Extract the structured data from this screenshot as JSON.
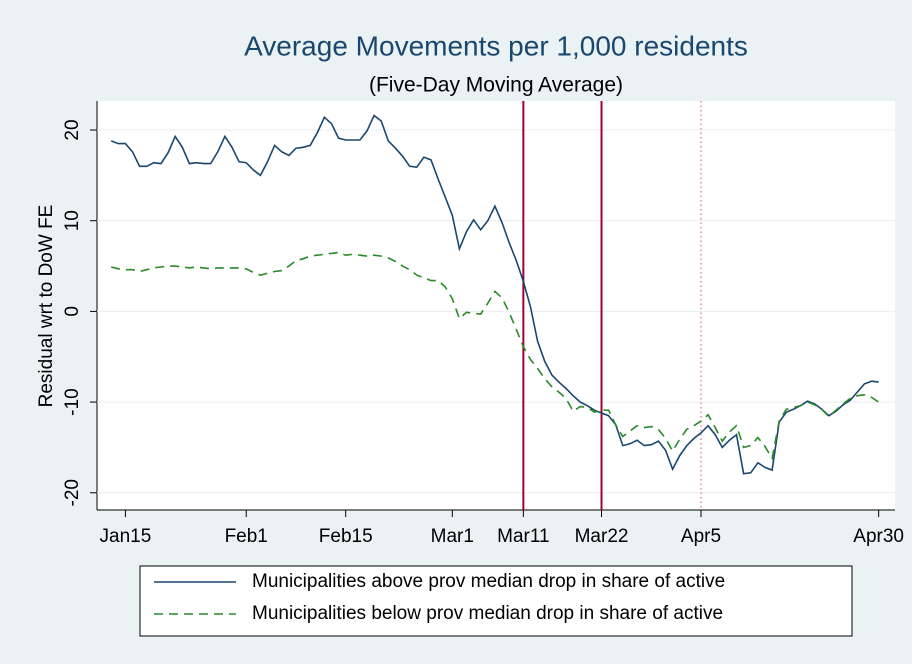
{
  "chart_data": {
    "type": "line",
    "title": "Average Movements per 1,000 residents",
    "subtitle": "(Five-Day Moving Average)",
    "y_label": "Residual wrt to DoW FE",
    "x": [
      13,
      14,
      15,
      16,
      17,
      18,
      19,
      20,
      21,
      22,
      23,
      24,
      25,
      26,
      27,
      28,
      29,
      30,
      31,
      32,
      33,
      34,
      35,
      36,
      37,
      38,
      39,
      40,
      41,
      42,
      43,
      44,
      45,
      46,
      47,
      48,
      49,
      50,
      51,
      52,
      53,
      54,
      55,
      56,
      57,
      58,
      59,
      60,
      61,
      62,
      63,
      64,
      65,
      66,
      67,
      68,
      69,
      70,
      71,
      72,
      73,
      74,
      75,
      76,
      77,
      78,
      79,
      80,
      81,
      82,
      83,
      84,
      85,
      86,
      87,
      88,
      89,
      90,
      91,
      92,
      93,
      94,
      95,
      96,
      97,
      98,
      99,
      100,
      101,
      102,
      103,
      104,
      105,
      106,
      107,
      108,
      109,
      110,
      111,
      112,
      113,
      114,
      115,
      116,
      117,
      118,
      119,
      120,
      121
    ],
    "series": [
      {
        "name": "Municipalities above prov median drop in share of active",
        "color": "#1a476f",
        "dash": "solid",
        "values": [
          18.8,
          18.5,
          18.5,
          17.6,
          16.0,
          16.0,
          16.4,
          16.3,
          17.5,
          19.3,
          18.1,
          16.3,
          16.4,
          16.3,
          16.3,
          17.6,
          19.3,
          18.1,
          16.5,
          16.4,
          15.6,
          15.0,
          16.5,
          18.3,
          17.6,
          17.2,
          18.0,
          18.1,
          18.3,
          19.7,
          21.4,
          20.7,
          19.1,
          18.9,
          18.9,
          18.9,
          19.9,
          21.6,
          21.0,
          18.8,
          18.0,
          17.1,
          16.0,
          15.9,
          17.0,
          16.7,
          14.6,
          12.6,
          10.6,
          6.9,
          8.8,
          10.1,
          9.0,
          10.0,
          11.6,
          9.8,
          7.6,
          5.6,
          3.3,
          0.5,
          -3.3,
          -5.5,
          -7.0,
          -7.8,
          -8.5,
          -9.3,
          -10.0,
          -10.4,
          -10.9,
          -11.2,
          -11.5,
          -12.5,
          -14.8,
          -14.6,
          -14.2,
          -14.8,
          -14.7,
          -14.3,
          -15.3,
          -17.4,
          -15.9,
          -14.8,
          -14.0,
          -13.4,
          -12.6,
          -13.6,
          -15.0,
          -14.2,
          -13.6,
          -17.9,
          -17.8,
          -16.7,
          -17.2,
          -17.5,
          -12.2,
          -11.1,
          -10.8,
          -10.4,
          -9.9,
          -10.2,
          -10.8,
          -11.5,
          -11.0,
          -10.3,
          -9.8,
          -8.9,
          -8.0,
          -7.7,
          -7.8
        ]
      },
      {
        "name": "Municipalities below prov median drop in share of active",
        "color": "#2a8a2a",
        "dash": "dashed",
        "values": [
          4.9,
          4.7,
          4.6,
          4.6,
          4.4,
          4.6,
          4.8,
          4.9,
          5.0,
          5.0,
          4.9,
          4.8,
          4.9,
          4.8,
          4.7,
          4.8,
          4.8,
          4.8,
          4.8,
          4.7,
          4.3,
          4.0,
          4.2,
          4.4,
          4.5,
          5.0,
          5.6,
          5.8,
          6.1,
          6.2,
          6.3,
          6.4,
          6.5,
          6.2,
          6.3,
          6.2,
          6.1,
          6.2,
          6.1,
          5.9,
          5.5,
          5.0,
          4.6,
          4.0,
          3.7,
          3.4,
          3.4,
          2.7,
          1.4,
          -0.8,
          -0.1,
          -0.2,
          -0.3,
          0.9,
          2.2,
          1.5,
          -0.1,
          -2.0,
          -3.9,
          -5.3,
          -6.3,
          -7.4,
          -8.3,
          -8.9,
          -9.6,
          -11.0,
          -10.5,
          -10.6,
          -11.1,
          -10.9,
          -10.9,
          -12.5,
          -13.8,
          -13.2,
          -12.6,
          -12.8,
          -12.7,
          -13.0,
          -14.0,
          -15.4,
          -14.1,
          -13.0,
          -12.6,
          -12.1,
          -11.4,
          -12.8,
          -14.3,
          -13.3,
          -12.6,
          -15.0,
          -14.8,
          -13.9,
          -14.9,
          -16.2,
          -12.1,
          -10.8,
          -10.6,
          -10.4,
          -10.0,
          -10.3,
          -10.8,
          -11.6,
          -10.9,
          -10.2,
          -9.6,
          -9.3,
          -9.2,
          -9.5,
          -10.0
        ]
      }
    ],
    "xlim": [
      11,
      123.3
    ],
    "xticks": [
      {
        "value": 15,
        "label": "Jan15"
      },
      {
        "value": 32,
        "label": "Feb1"
      },
      {
        "value": 46,
        "label": "Feb15"
      },
      {
        "value": 61,
        "label": "Mar1"
      },
      {
        "value": 71,
        "label": "Mar11"
      },
      {
        "value": 82,
        "label": "Mar22"
      },
      {
        "value": 96,
        "label": "Apr5"
      },
      {
        "value": 121,
        "label": "Apr30"
      }
    ],
    "ylim": [
      -21.9,
      23.2
    ],
    "yticks": [
      -20,
      -10,
      0,
      10,
      20
    ],
    "grid": true,
    "vlines": [
      {
        "value": 71,
        "color": "#a50034",
        "style": "solid"
      },
      {
        "value": 82,
        "color": "#a50034",
        "style": "solid"
      },
      {
        "value": 96,
        "color": "#e06a8a",
        "style": "dotted"
      }
    ],
    "legend": "bottom"
  }
}
